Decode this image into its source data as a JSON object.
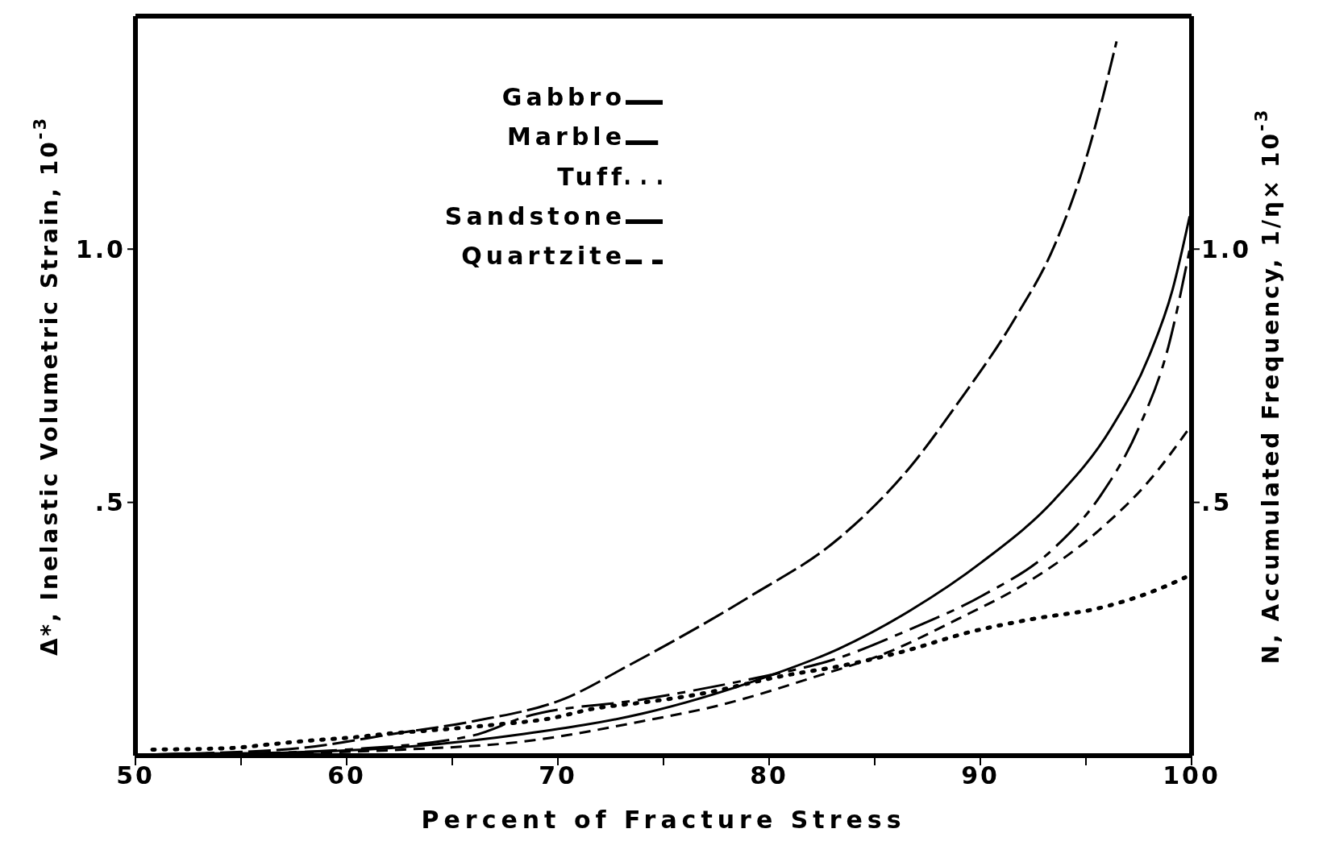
{
  "chart_data": {
    "type": "line",
    "xlabel": "Percent of Fracture Stress",
    "ylabel": "Δ*, Inelastic Volumetric Strain, 10$^{-3}$",
    "y2label": "N, Accumulated Frequency, 1/η× 10$^{-3}$",
    "xlim": [
      50,
      100
    ],
    "xticks": [
      50,
      {
        "value": 55,
        "label": null
      },
      60,
      {
        "value": 65,
        "label": null
      },
      70,
      {
        "value": 75,
        "label": null
      },
      80,
      {
        "value": 85,
        "label": null
      },
      90,
      {
        "value": 95,
        "label": null
      },
      100
    ],
    "ylim": [
      0,
      1.46
    ],
    "yticks": [
      {
        "value": 0.5,
        "label": ".5"
      },
      {
        "value": 1,
        "label": "1.0"
      }
    ],
    "y2lim": [
      0,
      1.46
    ],
    "y2ticks": [
      {
        "value": 0.5,
        "label": ".5"
      },
      {
        "value": 1,
        "label": "1.0"
      }
    ],
    "legend": "top",
    "marker": "none",
    "series": [
      {
        "name": "Gabbro",
        "color": "#000000",
        "line_style": "solid",
        "x": [
          50,
          51.4,
          57.1,
          62.7,
          68.4,
          74,
          79.9,
          83.3,
          86.7,
          90.1,
          93.5,
          96.2,
          98,
          99.1,
          99.9
        ],
        "values": [
          0,
          0.003,
          0.006,
          0.017,
          0.043,
          0.083,
          0.156,
          0.211,
          0.287,
          0.383,
          0.505,
          0.647,
          0.79,
          0.92,
          1.063
        ]
      },
      {
        "name": "Marble",
        "color": "#000000",
        "line_style": "dashed",
        "x": [
          50,
          52,
          57.8,
          62.5,
          66,
          70.4,
          73.3,
          79,
          83.3,
          86.7,
          88.9,
          91.65,
          93.5,
          95.05,
          96.45
        ],
        "values": [
          0,
          0.003,
          0.015,
          0.045,
          0.068,
          0.114,
          0.177,
          0.312,
          0.429,
          0.571,
          0.694,
          0.864,
          1.006,
          1.185,
          1.41
        ]
      },
      {
        "name": "Tuff",
        "color": "#000000",
        "line_style": "dotted",
        "x": [
          50.8,
          54.5,
          56.3,
          58.3,
          60.3,
          62.1,
          64,
          67,
          69.7,
          71.6,
          74.4,
          76.5,
          80.6,
          83.5,
          86.2,
          89.6,
          92.5,
          95.7,
          98.8,
          99.7
        ],
        "values": [
          0.012,
          0.015,
          0.022,
          0.03,
          0.036,
          0.044,
          0.05,
          0.061,
          0.074,
          0.092,
          0.107,
          0.12,
          0.157,
          0.178,
          0.204,
          0.245,
          0.27,
          0.292,
          0.335,
          0.352
        ]
      },
      {
        "name": "Sandstone",
        "color": "#000000",
        "line_style": "dashed",
        "x": [
          50,
          55,
          60,
          66,
          68.4,
          74,
          79,
          83.3,
          86.7,
          90.1,
          93.5,
          95.7,
          97.5,
          98.9,
          99.9
        ],
        "values": [
          0,
          0.004,
          0.012,
          0.04,
          0.076,
          0.111,
          0.15,
          0.193,
          0.25,
          0.316,
          0.41,
          0.514,
          0.647,
          0.807,
          0.997
        ]
      },
      {
        "name": "Quartzite",
        "color": "#000000",
        "line_style": "dashed",
        "x": [
          50,
          55,
          62.7,
          68.4,
          74,
          77.6,
          82.2,
          85.5,
          88.9,
          92.3,
          95.7,
          98,
          99.9
        ],
        "values": [
          0,
          0.003,
          0.012,
          0.028,
          0.068,
          0.099,
          0.156,
          0.202,
          0.269,
          0.344,
          0.448,
          0.543,
          0.647
        ]
      }
    ]
  }
}
